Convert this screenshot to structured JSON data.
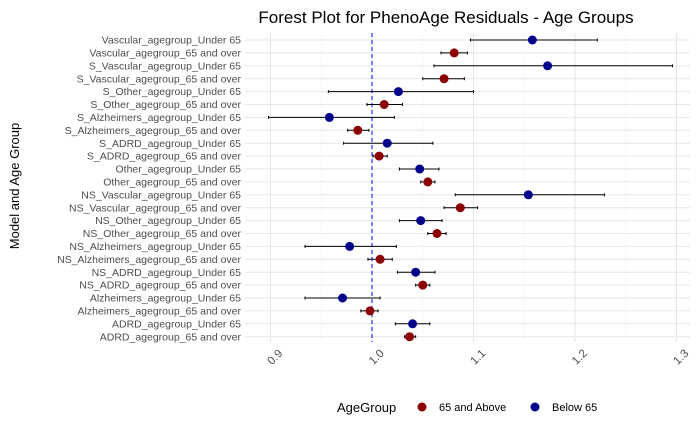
{
  "chart_data": {
    "type": "forest",
    "title": "Forest Plot for PhenoAge Residuals - Age Groups",
    "xlabel": "",
    "ylabel": "Model and Age Group",
    "xlim": [
      0.865,
      1.31
    ],
    "xticks": [
      0.9,
      1.0,
      1.1,
      1.2,
      1.3
    ],
    "xtick_labels": [
      "0.9",
      "1.0",
      "1.1",
      "1.2",
      "1.3"
    ],
    "reference_line": 1.0,
    "grid": true,
    "legend": {
      "title": "AgeGroup",
      "position": "bottom",
      "entries": [
        {
          "label": "65 and Above",
          "color": "#8B0000"
        },
        {
          "label": "Below 65",
          "color": "#00008B"
        }
      ]
    },
    "rows": [
      {
        "label": "Vascular_agegroup_Under 65",
        "group": "Below 65",
        "estimate": 1.158,
        "lower": 1.097,
        "upper": 1.222
      },
      {
        "label": "Vascular_agegroup_65 and over",
        "group": "65 and Above",
        "estimate": 1.081,
        "lower": 1.068,
        "upper": 1.094
      },
      {
        "label": "S_Vascular_agegroup_Under 65",
        "group": "Below 65",
        "estimate": 1.173,
        "lower": 1.061,
        "upper": 1.296
      },
      {
        "label": "S_Vascular_agegroup_65 and over",
        "group": "65 and Above",
        "estimate": 1.071,
        "lower": 1.05,
        "upper": 1.091
      },
      {
        "label": "S_Other_agegroup_Under 65",
        "group": "Below 65",
        "estimate": 1.026,
        "lower": 0.957,
        "upper": 1.1
      },
      {
        "label": "S_Other_agegroup_65 and over",
        "group": "65 and Above",
        "estimate": 1.012,
        "lower": 0.995,
        "upper": 1.03
      },
      {
        "label": "S_Alzheimers_agegroup_Under 65",
        "group": "Below 65",
        "estimate": 0.958,
        "lower": 0.898,
        "upper": 1.022
      },
      {
        "label": "S_Alzheimers_agegroup_65 and over",
        "group": "65 and Above",
        "estimate": 0.986,
        "lower": 0.976,
        "upper": 0.997
      },
      {
        "label": "S_ADRD_agegroup_Under 65",
        "group": "Below 65",
        "estimate": 1.015,
        "lower": 0.972,
        "upper": 1.06
      },
      {
        "label": "S_ADRD_agegroup_65 and over",
        "group": "65 and Above",
        "estimate": 1.007,
        "lower": 1.001,
        "upper": 1.015
      },
      {
        "label": "Other_agegroup_Under 65",
        "group": "Below 65",
        "estimate": 1.047,
        "lower": 1.027,
        "upper": 1.066
      },
      {
        "label": "Other_agegroup_65 and over",
        "group": "65 and Above",
        "estimate": 1.055,
        "lower": 1.048,
        "upper": 1.062
      },
      {
        "label": "NS_Vascular_agegroup_Under 65",
        "group": "Below 65",
        "estimate": 1.154,
        "lower": 1.082,
        "upper": 1.229
      },
      {
        "label": "NS_Vascular_agegroup_65 and over",
        "group": "65 and Above",
        "estimate": 1.087,
        "lower": 1.071,
        "upper": 1.104
      },
      {
        "label": "NS_Other_agegroup_Under 65",
        "group": "Below 65",
        "estimate": 1.048,
        "lower": 1.027,
        "upper": 1.069
      },
      {
        "label": "NS_Other_agegroup_65 and over",
        "group": "65 and Above",
        "estimate": 1.064,
        "lower": 1.055,
        "upper": 1.073
      },
      {
        "label": "NS_Alzheimers_agegroup_Under 65",
        "group": "Below 65",
        "estimate": 0.978,
        "lower": 0.934,
        "upper": 1.024
      },
      {
        "label": "NS_Alzheimers_agegroup_65 and over",
        "group": "65 and Above",
        "estimate": 1.008,
        "lower": 0.996,
        "upper": 1.02
      },
      {
        "label": "NS_ADRD_agegroup_Under 65",
        "group": "Below 65",
        "estimate": 1.043,
        "lower": 1.025,
        "upper": 1.062
      },
      {
        "label": "NS_ADRD_agegroup_65 and over",
        "group": "65 and Above",
        "estimate": 1.05,
        "lower": 1.043,
        "upper": 1.057
      },
      {
        "label": "Alzheimers_agegroup_Under 65",
        "group": "Below 65",
        "estimate": 0.971,
        "lower": 0.934,
        "upper": 1.008
      },
      {
        "label": "Alzheimers_agegroup_65 and over",
        "group": "65 and Above",
        "estimate": 0.998,
        "lower": 0.989,
        "upper": 1.006
      },
      {
        "label": "ADRD_agegroup_Under 65",
        "group": "Below 65",
        "estimate": 1.04,
        "lower": 1.023,
        "upper": 1.057
      },
      {
        "label": "ADRD_agegroup_65 and over",
        "group": "65 and Above",
        "estimate": 1.037,
        "lower": 1.032,
        "upper": 1.043
      }
    ]
  }
}
